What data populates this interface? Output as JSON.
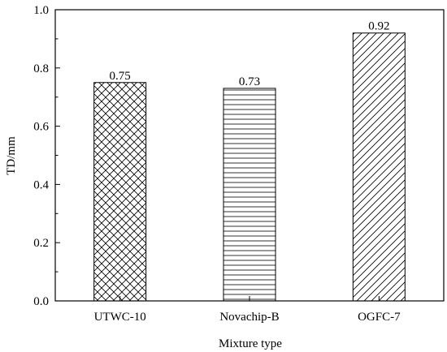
{
  "chart_data": {
    "type": "bar",
    "categories": [
      "UTWC-10",
      "Novachip-B",
      "OGFC-7"
    ],
    "values": [
      0.75,
      0.73,
      0.92
    ],
    "data_labels": [
      "0.75",
      "0.73",
      "0.92"
    ],
    "patterns": [
      "crosshatch",
      "horizontal",
      "diagonal"
    ],
    "xlabel": "Mixture type",
    "ylabel": "TD/mm",
    "ylim": [
      0.0,
      1.0
    ],
    "yticks": [
      0.0,
      0.2,
      0.4,
      0.6,
      0.8,
      1.0
    ],
    "ytick_labels": [
      "0.0",
      "0.2",
      "0.4",
      "0.6",
      "0.8",
      "1.0"
    ],
    "grid": false,
    "colors": {
      "bar_fill": "#ffffff",
      "bar_stroke": "#000000",
      "axis": "#000000"
    }
  }
}
